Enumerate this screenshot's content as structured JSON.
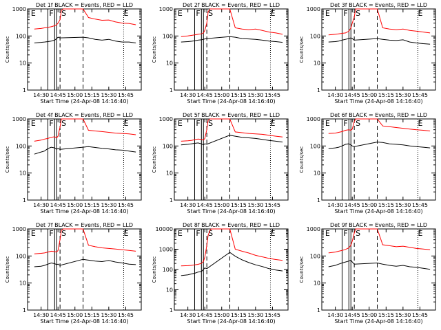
{
  "ylabel": "Counts/sec",
  "xlabel": "Start Time (24-Apr-08 14:16:40)",
  "xticks": [
    "14:30",
    "14:45",
    "15:00",
    "15:15",
    "15:30",
    "15:45"
  ],
  "yscale": "log",
  "marker_labels": [
    "E",
    "F",
    "S",
    "E"
  ],
  "series_colors": {
    "events": "#000000",
    "lld": "#ff0000"
  },
  "chart_data": [
    {
      "type": "line",
      "title": "Det 1f BLACK = Events, RED = LLD",
      "ylim": [
        1,
        1000
      ],
      "yticks": [
        "1",
        "10",
        "100",
        "1000"
      ],
      "series": [
        {
          "color": "#000000",
          "x": [
            14.4,
            14.5,
            14.55,
            14.6,
            14.65,
            14.7,
            14.73,
            14.75,
            14.78,
            15.12,
            15.2,
            15.3,
            15.4,
            15.5,
            15.6,
            15.7,
            15.8,
            15.9
          ],
          "y": [
            55,
            58,
            60,
            62,
            65,
            70,
            80,
            90,
            85,
            90,
            85,
            75,
            70,
            75,
            65,
            60,
            60,
            55
          ]
        },
        {
          "color": "#ff0000",
          "x": [
            14.4,
            14.5,
            14.55,
            14.6,
            14.65,
            14.7,
            14.73,
            14.75,
            14.78,
            14.8,
            14.83,
            14.85,
            15.12,
            15.2,
            15.3,
            15.4,
            15.5,
            15.6,
            15.7,
            15.8,
            15.9
          ],
          "y": [
            180,
            190,
            200,
            210,
            220,
            240,
            260,
            300,
            400,
            900,
            1000,
            1000,
            1000,
            480,
            420,
            380,
            390,
            330,
            300,
            290,
            260
          ]
        }
      ]
    },
    {
      "type": "line",
      "title": "Det 2f BLACK = Events, RED = LLD",
      "ylim": [
        1,
        1000
      ],
      "yticks": [
        "1",
        "10",
        "100",
        "1000"
      ],
      "series": [
        {
          "color": "#000000",
          "x": [
            14.4,
            14.5,
            14.55,
            14.6,
            14.65,
            14.7,
            14.73,
            14.75,
            14.78,
            15.12,
            15.2,
            15.3,
            15.4,
            15.5,
            15.6,
            15.7,
            15.8,
            15.9
          ],
          "y": [
            60,
            62,
            64,
            66,
            70,
            72,
            75,
            78,
            80,
            95,
            90,
            80,
            78,
            75,
            70,
            65,
            62,
            58
          ]
        },
        {
          "color": "#ff0000",
          "x": [
            14.4,
            14.5,
            14.55,
            14.6,
            14.65,
            14.7,
            14.73,
            14.75,
            14.78,
            14.8,
            14.83,
            14.85,
            15.12,
            15.2,
            15.3,
            15.4,
            15.5,
            15.6,
            15.7,
            15.8,
            15.9
          ],
          "y": [
            95,
            100,
            105,
            110,
            115,
            120,
            130,
            160,
            300,
            800,
            1000,
            1000,
            1000,
            200,
            180,
            170,
            180,
            160,
            140,
            130,
            115
          ]
        }
      ]
    },
    {
      "type": "line",
      "title": "Det 3f BLACK = Events, RED = LLD",
      "ylim": [
        1,
        1000
      ],
      "yticks": [
        "1",
        "10",
        "100",
        "1000"
      ],
      "series": [
        {
          "color": "#000000",
          "x": [
            14.4,
            14.5,
            14.55,
            14.6,
            14.65,
            14.7,
            14.73,
            14.75,
            14.78,
            15.12,
            15.2,
            15.3,
            15.4,
            15.5,
            15.6,
            15.7,
            15.8,
            15.9
          ],
          "y": [
            60,
            62,
            65,
            70,
            75,
            80,
            85,
            80,
            70,
            80,
            75,
            70,
            68,
            72,
            60,
            55,
            52,
            50
          ]
        },
        {
          "color": "#ff0000",
          "x": [
            14.4,
            14.5,
            14.55,
            14.6,
            14.65,
            14.7,
            14.73,
            14.75,
            14.78,
            14.8,
            14.83,
            14.85,
            15.12,
            15.2,
            15.3,
            15.4,
            15.5,
            15.6,
            15.7,
            15.8,
            15.9
          ],
          "y": [
            110,
            115,
            120,
            125,
            130,
            150,
            200,
            300,
            500,
            1000,
            1000,
            1000,
            1000,
            200,
            180,
            170,
            180,
            160,
            150,
            140,
            130
          ]
        }
      ]
    },
    {
      "type": "line",
      "title": "Det 4f BLACK = Events, RED = LLD",
      "ylim": [
        1,
        1000
      ],
      "yticks": [
        "1",
        "10",
        "100",
        "1000"
      ],
      "series": [
        {
          "color": "#000000",
          "x": [
            14.4,
            14.5,
            14.55,
            14.6,
            14.65,
            14.7,
            14.73,
            14.75,
            14.78,
            15.12,
            15.2,
            15.3,
            15.4,
            15.5,
            15.6,
            15.7,
            15.8,
            15.9
          ],
          "y": [
            50,
            60,
            65,
            80,
            90,
            85,
            75,
            80,
            75,
            90,
            95,
            88,
            82,
            78,
            72,
            70,
            65,
            60
          ]
        },
        {
          "color": "#ff0000",
          "x": [
            14.4,
            14.5,
            14.55,
            14.6,
            14.65,
            14.7,
            14.73,
            14.75,
            14.78,
            14.8,
            14.83,
            14.85,
            15.12,
            15.2,
            15.3,
            15.4,
            15.5,
            15.6,
            15.7,
            15.8,
            15.9
          ],
          "y": [
            150,
            165,
            180,
            190,
            210,
            220,
            200,
            230,
            500,
            1000,
            1000,
            1000,
            1000,
            380,
            360,
            340,
            320,
            300,
            290,
            280,
            260
          ]
        }
      ]
    },
    {
      "type": "line",
      "title": "Det 5f BLACK = Events, RED = LLD",
      "ylim": [
        1,
        1000
      ],
      "yticks": [
        "1",
        "10",
        "100",
        "1000"
      ],
      "series": [
        {
          "color": "#000000",
          "x": [
            14.4,
            14.5,
            14.55,
            14.6,
            14.65,
            14.7,
            14.73,
            14.75,
            14.78,
            15.12,
            15.2,
            15.3,
            15.4,
            15.5,
            15.6,
            15.7,
            15.8,
            15.9
          ],
          "y": [
            110,
            115,
            120,
            125,
            130,
            120,
            110,
            120,
            115,
            250,
            230,
            210,
            200,
            190,
            175,
            160,
            150,
            140
          ]
        },
        {
          "color": "#ff0000",
          "x": [
            14.4,
            14.5,
            14.55,
            14.6,
            14.65,
            14.7,
            14.73,
            14.75,
            14.78,
            14.8,
            14.83,
            14.85,
            15.12,
            15.2,
            15.3,
            15.4,
            15.5,
            15.6,
            15.7,
            15.8,
            15.9
          ],
          "y": [
            150,
            155,
            160,
            170,
            180,
            175,
            165,
            190,
            400,
            900,
            1000,
            1000,
            1000,
            330,
            310,
            290,
            280,
            270,
            250,
            230,
            215
          ]
        }
      ]
    },
    {
      "type": "line",
      "title": "Det 6f BLACK = Events, RED = LLD",
      "ylim": [
        1,
        1000
      ],
      "yticks": [
        "1",
        "10",
        "100",
        "1000"
      ],
      "series": [
        {
          "color": "#000000",
          "x": [
            14.4,
            14.5,
            14.55,
            14.6,
            14.65,
            14.7,
            14.73,
            14.75,
            14.78,
            15.12,
            15.2,
            15.3,
            15.4,
            15.5,
            15.6,
            15.7,
            15.8,
            15.9
          ],
          "y": [
            80,
            85,
            90,
            100,
            115,
            120,
            110,
            100,
            95,
            140,
            135,
            120,
            115,
            110,
            100,
            95,
            90,
            85
          ]
        },
        {
          "color": "#ff0000",
          "x": [
            14.4,
            14.5,
            14.55,
            14.6,
            14.65,
            14.7,
            14.73,
            14.75,
            14.78,
            14.8,
            14.83,
            14.85,
            15.12,
            15.2,
            15.3,
            15.4,
            15.5,
            15.6,
            15.7,
            15.8,
            15.9
          ],
          "y": [
            290,
            300,
            320,
            340,
            380,
            400,
            380,
            420,
            800,
            1000,
            1000,
            1000,
            1000,
            550,
            520,
            480,
            450,
            420,
            400,
            380,
            360
          ]
        }
      ]
    },
    {
      "type": "line",
      "title": "Det 7f BLACK = Events, RED = LLD",
      "ylim": [
        1,
        1000
      ],
      "yticks": [
        "1",
        "10",
        "100",
        "1000"
      ],
      "series": [
        {
          "color": "#000000",
          "x": [
            14.4,
            14.5,
            14.55,
            14.6,
            14.65,
            14.7,
            14.73,
            14.75,
            14.78,
            15.12,
            15.2,
            15.3,
            15.4,
            15.5,
            15.6,
            15.7,
            15.8,
            15.9
          ],
          "y": [
            40,
            42,
            45,
            50,
            55,
            52,
            48,
            50,
            45,
            75,
            70,
            65,
            62,
            68,
            60,
            55,
            50,
            48
          ]
        },
        {
          "color": "#ff0000",
          "x": [
            14.4,
            14.5,
            14.55,
            14.6,
            14.65,
            14.7,
            14.73,
            14.75,
            14.78,
            14.8,
            14.83,
            14.85,
            15.12,
            15.2,
            15.3,
            15.4,
            15.5,
            15.6,
            15.7,
            15.8,
            15.9
          ],
          "y": [
            120,
            125,
            130,
            140,
            150,
            145,
            140,
            160,
            400,
            900,
            1000,
            1000,
            1000,
            250,
            220,
            200,
            190,
            180,
            170,
            160,
            150
          ]
        }
      ]
    },
    {
      "type": "line",
      "title": "Det 8f BLACK = Events, RED = LLD",
      "ylim": [
        1,
        10000
      ],
      "yticks": [
        "1",
        "10",
        "100",
        "1000",
        "10000"
      ],
      "series": [
        {
          "color": "#000000",
          "x": [
            14.4,
            14.5,
            14.55,
            14.6,
            14.65,
            14.7,
            14.73,
            14.75,
            14.78,
            15.12,
            15.2,
            15.3,
            15.4,
            15.5,
            15.6,
            15.7,
            15.8,
            15.9
          ],
          "y": [
            50,
            55,
            60,
            65,
            75,
            80,
            100,
            120,
            110,
            700,
            450,
            300,
            220,
            170,
            140,
            110,
            95,
            85
          ]
        },
        {
          "color": "#ff0000",
          "x": [
            14.4,
            14.5,
            14.55,
            14.6,
            14.65,
            14.7,
            14.73,
            14.75,
            14.78,
            14.8,
            14.83,
            14.85,
            15.12,
            15.2,
            15.3,
            15.4,
            15.5,
            15.6,
            15.7,
            15.8,
            15.9
          ],
          "y": [
            150,
            155,
            160,
            170,
            180,
            200,
            250,
            400,
            1500,
            5000,
            9000,
            10000,
            10000,
            1000,
            800,
            650,
            500,
            420,
            350,
            310,
            280
          ]
        }
      ]
    },
    {
      "type": "line",
      "title": "Det 9f BLACK = Events, RED = LLD",
      "ylim": [
        1,
        1000
      ],
      "yticks": [
        "1",
        "10",
        "100",
        "1000"
      ],
      "series": [
        {
          "color": "#000000",
          "x": [
            14.4,
            14.5,
            14.55,
            14.6,
            14.65,
            14.7,
            14.73,
            14.75,
            14.78,
            15.12,
            15.2,
            15.3,
            15.4,
            15.5,
            15.6,
            15.7,
            15.8,
            15.9
          ],
          "y": [
            40,
            45,
            50,
            55,
            60,
            65,
            70,
            60,
            50,
            55,
            50,
            45,
            42,
            45,
            40,
            38,
            35,
            32
          ]
        },
        {
          "color": "#ff0000",
          "x": [
            14.4,
            14.5,
            14.55,
            14.6,
            14.65,
            14.7,
            14.73,
            14.75,
            14.78,
            14.8,
            14.83,
            14.85,
            15.12,
            15.2,
            15.3,
            15.4,
            15.5,
            15.6,
            15.7,
            15.8,
            15.9
          ],
          "y": [
            130,
            140,
            150,
            160,
            175,
            200,
            250,
            350,
            700,
            1000,
            1000,
            1000,
            1000,
            260,
            240,
            220,
            230,
            210,
            190,
            180,
            170
          ]
        }
      ]
    }
  ]
}
